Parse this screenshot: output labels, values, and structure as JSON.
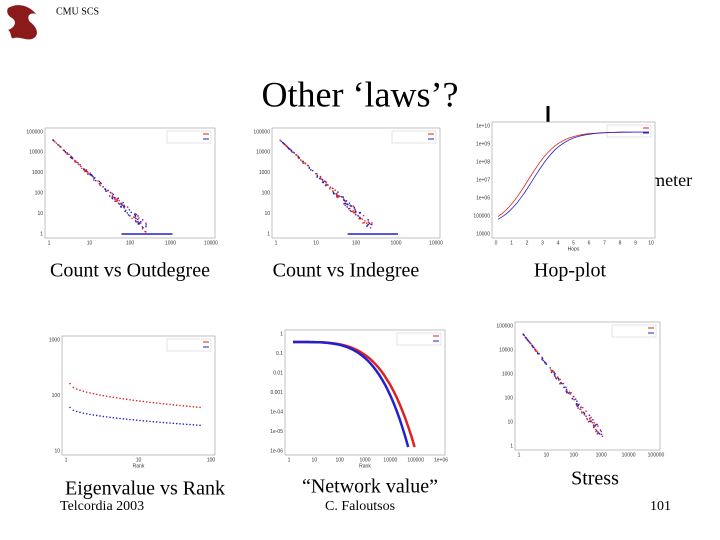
{
  "header": {
    "logo_text": "CMU SCS",
    "title": "Other ‘laws’?",
    "annotation": "Effective Diameter"
  },
  "plots": [
    {
      "caption": "Count vs Outdegree",
      "yticks": [
        "100000",
        "10000",
        "1000",
        "100",
        "10",
        "1"
      ],
      "xticks": [
        "1",
        "10",
        "100",
        "1000",
        "10000"
      ]
    },
    {
      "caption": "Count vs Indegree",
      "yticks": [
        "100000",
        "10000",
        "1000",
        "100",
        "10",
        "1"
      ],
      "xticks": [
        "1",
        "10",
        "100",
        "1000",
        "10000"
      ]
    },
    {
      "caption": "Hop-plot",
      "yticks": [
        "1e+10",
        "1e+09",
        "1e+08",
        "1e+07",
        "1e+06",
        "100000",
        "10000"
      ],
      "xticks": [
        "0",
        "1",
        "2",
        "3",
        "4",
        "5",
        "6",
        "7",
        "8",
        "9",
        "10"
      ],
      "xlabel": "Hops"
    },
    {
      "caption": "Eigenvalue vs Rank",
      "yticks": [
        "1000",
        "100",
        "10"
      ],
      "xticks": [
        "1",
        "10",
        "100"
      ],
      "xlabel": "Rank"
    },
    {
      "caption": "“Network value”",
      "yticks": [
        "1",
        "0.1",
        "0.01",
        "0.001",
        "1e-04",
        "1e-05",
        "1e-06"
      ],
      "xticks": [
        "1",
        "10",
        "100",
        "1000",
        "10000",
        "100000",
        "1e+06"
      ],
      "xlabel": "Rank"
    },
    {
      "caption": "Stress",
      "yticks": [
        "100000",
        "10000",
        "1000",
        "100",
        "10",
        "1"
      ],
      "xticks": [
        "1",
        "10",
        "100",
        "1000",
        "10000",
        "100000"
      ]
    }
  ],
  "footer": {
    "left": "Telcordia 2003",
    "center": "C. Faloutsos",
    "page": "101"
  }
}
